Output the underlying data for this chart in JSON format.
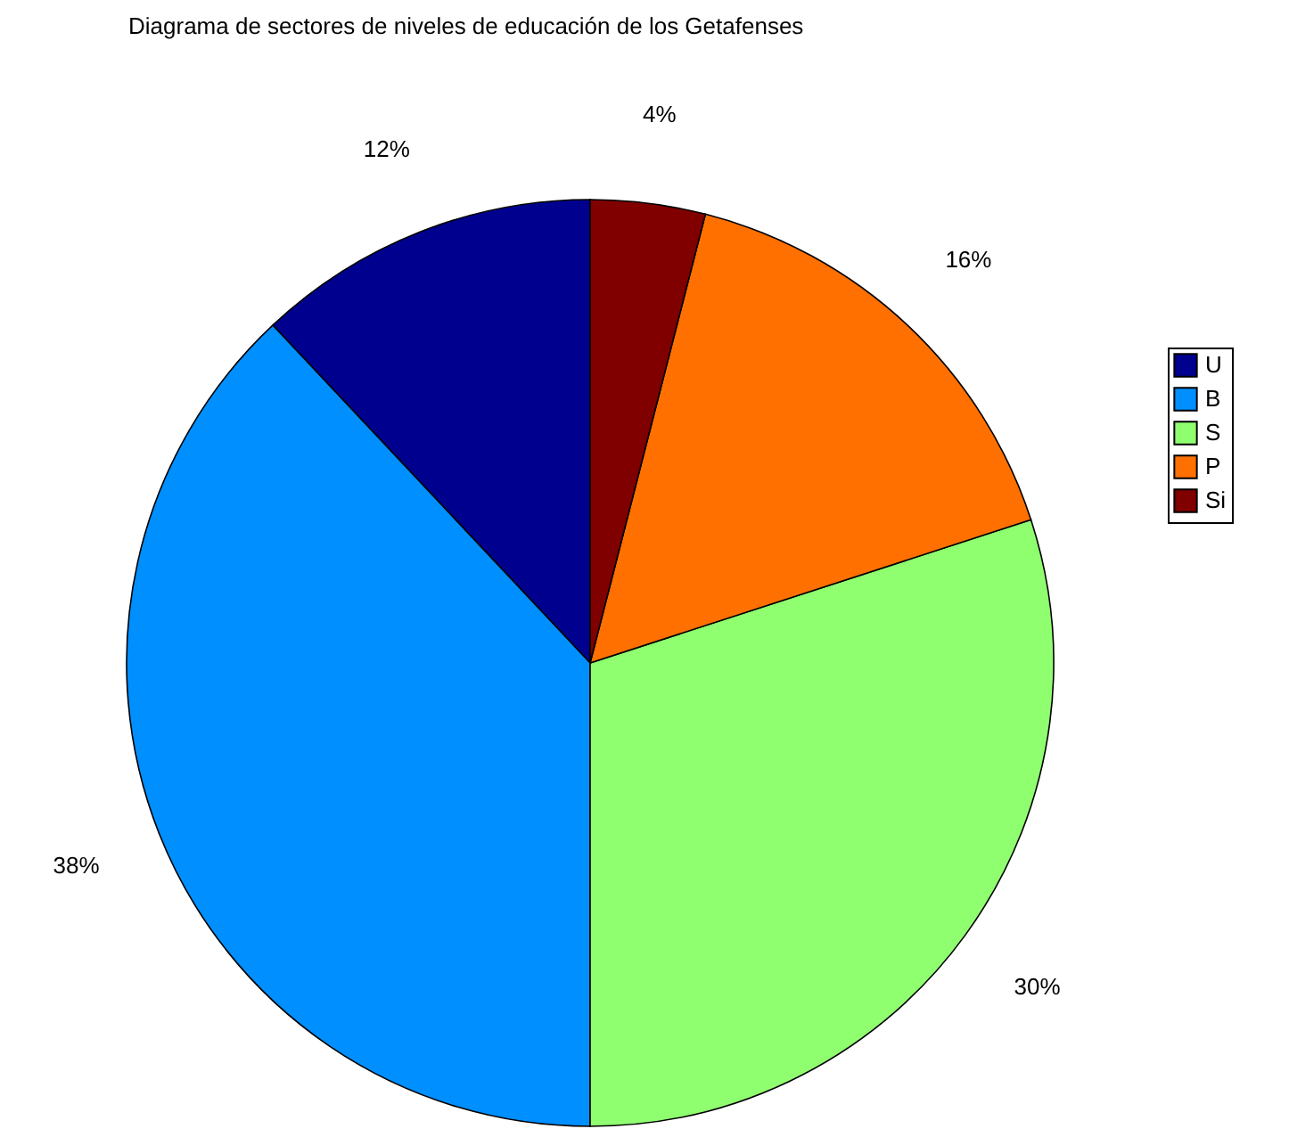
{
  "chart_data": {
    "type": "pie",
    "title": "Diagrama de sectores de niveles de educación de los Getafenses",
    "categories": [
      "U",
      "B",
      "S",
      "P",
      "Si"
    ],
    "values": [
      12,
      38,
      30,
      16,
      4
    ],
    "colors": [
      "#00008f",
      "#008fff",
      "#8fff70",
      "#ff7000",
      "#800000"
    ],
    "value_labels": [
      "12%",
      "38%",
      "30%",
      "16%",
      "4%"
    ],
    "legend": "right"
  }
}
